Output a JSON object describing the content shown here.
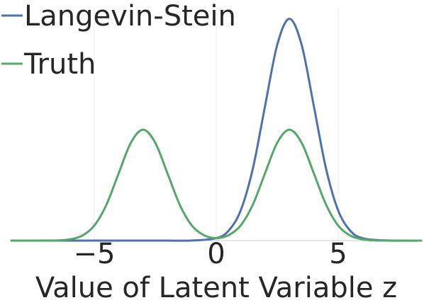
{
  "chart_data": {
    "type": "line",
    "title": "",
    "xlabel": "Value of Latent Variable z",
    "ylabel": "",
    "xlim": [
      -8.4,
      8.4
    ],
    "ylim": [
      0,
      0.42
    ],
    "grid": true,
    "legend": "top-left",
    "x_ticks": [
      -5,
      0,
      5
    ],
    "x_tick_labels": [
      "−5",
      "0",
      "5"
    ],
    "series": [
      {
        "name": "Langevin-Stein",
        "color": "#4c72b0",
        "x": [
          -8.4,
          -7,
          -6,
          -5,
          -4,
          -3,
          -2,
          -1,
          0,
          0.5,
          1,
          1.5,
          2,
          2.5,
          3,
          3.5,
          4,
          4.5,
          5,
          5.5,
          6,
          7,
          8.4
        ],
        "y": [
          0,
          0,
          0,
          0,
          0,
          0,
          0,
          0.0001,
          0.0044,
          0.0175,
          0.054,
          0.1295,
          0.242,
          0.3521,
          0.3989,
          0.3521,
          0.242,
          0.1295,
          0.054,
          0.0175,
          0.0044,
          0.0001,
          0
        ]
      },
      {
        "name": "Truth",
        "color": "#55a868",
        "x": [
          -8.4,
          -7,
          -6.5,
          -6,
          -5.5,
          -5,
          -4.5,
          -4,
          -3.5,
          -3,
          -2.5,
          -2,
          -1.5,
          -1,
          -0.5,
          0,
          0.5,
          1,
          1.5,
          2,
          2.5,
          3,
          3.5,
          4,
          4.5,
          5,
          5.5,
          6,
          6.5,
          7,
          8.4
        ],
        "y": [
          0,
          0.0001,
          0.0004,
          0.0022,
          0.0088,
          0.027,
          0.0648,
          0.121,
          0.176,
          0.1995,
          0.176,
          0.121,
          0.0648,
          0.0271,
          0.0096,
          0.0044,
          0.0096,
          0.0271,
          0.0648,
          0.121,
          0.176,
          0.1995,
          0.176,
          0.121,
          0.0648,
          0.027,
          0.0088,
          0.0022,
          0.0004,
          0.0001,
          0
        ]
      }
    ]
  }
}
